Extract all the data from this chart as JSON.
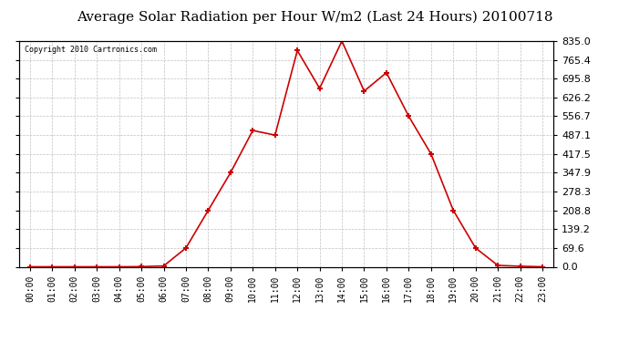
{
  "title": "Average Solar Radiation per Hour W/m2 (Last 24 Hours) 20100718",
  "copyright_text": "Copyright 2010 Cartronics.com",
  "hours": [
    "00:00",
    "01:00",
    "02:00",
    "03:00",
    "04:00",
    "05:00",
    "06:00",
    "07:00",
    "08:00",
    "09:00",
    "10:00",
    "11:00",
    "12:00",
    "13:00",
    "14:00",
    "15:00",
    "16:00",
    "17:00",
    "18:00",
    "19:00",
    "20:00",
    "21:00",
    "22:00",
    "23:00"
  ],
  "values": [
    0.0,
    0.0,
    0.0,
    0.0,
    0.0,
    0.5,
    3.0,
    69.6,
    208.8,
    347.9,
    504.0,
    487.1,
    800.0,
    660.0,
    835.0,
    650.0,
    718.0,
    556.7,
    417.5,
    208.8,
    69.6,
    5.0,
    2.0,
    0.0
  ],
  "line_color": "#cc0000",
  "marker_color": "#cc0000",
  "bg_color": "#ffffff",
  "plot_bg_color": "#ffffff",
  "grid_color": "#c0c0c0",
  "title_fontsize": 11,
  "yticks": [
    0.0,
    69.6,
    139.2,
    208.8,
    278.3,
    347.9,
    417.5,
    487.1,
    556.7,
    626.2,
    695.8,
    765.4,
    835.0
  ],
  "ymax": 835.0,
  "ymin": 0.0
}
